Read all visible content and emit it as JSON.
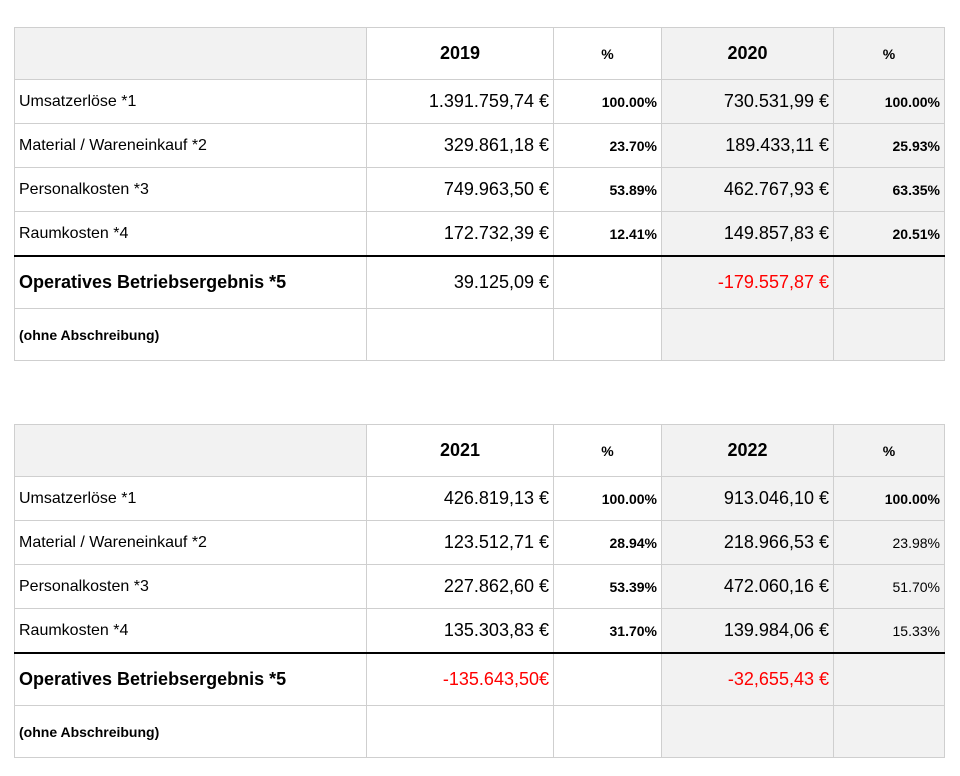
{
  "tables": [
    {
      "year_a": "2019",
      "year_b": "2020",
      "pct_label": "%",
      "rows": [
        {
          "label": "Umsatzerlöse  *1",
          "val_a": "1.391.759,74 €",
          "pct_a": "100.00%",
          "val_b": "730.531,99 €",
          "pct_b": "100.00%"
        },
        {
          "label": "Material / Wareneinkauf *2",
          "val_a": "329.861,18 €",
          "pct_a": "23.70%",
          "val_b": "189.433,11 €",
          "pct_b": "25.93%"
        },
        {
          "label": "Personalkosten *3",
          "val_a": "749.963,50 €",
          "pct_a": "53.89%",
          "val_b": "462.767,93 €",
          "pct_b": "63.35%"
        },
        {
          "label": "Raumkosten *4",
          "val_a": "172.732,39 €",
          "pct_a": "12.41%",
          "val_b": "149.857,83 €",
          "pct_b": "20.51%"
        }
      ],
      "op_label": "Operatives Betriebsergebnis *5",
      "op_a": "39.125,09 €",
      "op_b": "-179.557,87 €",
      "sub_label": "(ohne Abschreibung)"
    },
    {
      "year_a": "2021",
      "year_b": "2022",
      "pct_label": "%",
      "rows": [
        {
          "label": "Umsatzerlöse  *1",
          "val_a": "426.819,13 €",
          "pct_a": "100.00%",
          "val_b": "913.046,10 €",
          "pct_b": "100.00%"
        },
        {
          "label": "Material / Wareneinkauf *2",
          "val_a": "123.512,71 €",
          "pct_a": "28.94%",
          "val_b": "218.966,53 €",
          "pct_b": "23.98%"
        },
        {
          "label": "Personalkosten *3",
          "val_a": "227.862,60 €",
          "pct_a": "53.39%",
          "val_b": "472.060,16 €",
          "pct_b": "51.70%"
        },
        {
          "label": "Raumkosten *4",
          "val_a": "135.303,83 €",
          "pct_a": "31.70%",
          "val_b": "139.984,06 €",
          "pct_b": "15.33%"
        }
      ],
      "op_label": "Operatives Betriebsergebnis *5",
      "op_a": "-135.643,50€",
      "op_b": "-32,655,43 €",
      "sub_label": "(ohne Abschreibung)"
    }
  ],
  "colors": {
    "negative": "#ff0000",
    "header_fill": "#f2f2f2",
    "grid": "#cfcfcf"
  }
}
